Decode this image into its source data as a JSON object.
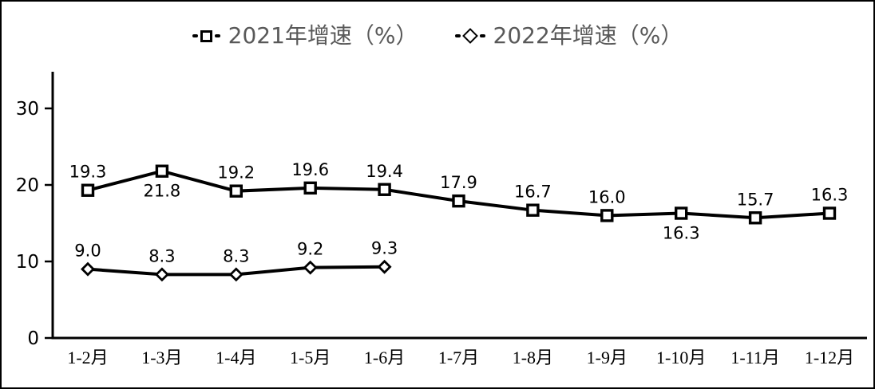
{
  "chart_data": {
    "type": "line",
    "title": "",
    "categories": [
      "1-2月",
      "1-3月",
      "1-4月",
      "1-5月",
      "1-6月",
      "1-7月",
      "1-8月",
      "1-9月",
      "1-10月",
      "1-11月",
      "1-12月"
    ],
    "series": [
      {
        "name": "2021年增速（%）",
        "marker": "square",
        "values": [
          19.3,
          21.8,
          19.2,
          19.6,
          19.4,
          17.9,
          16.7,
          16.0,
          16.3,
          15.7,
          16.3
        ],
        "label_position": [
          "above",
          "below",
          "above",
          "above",
          "above",
          "above",
          "above",
          "above",
          "below",
          "above",
          "above"
        ]
      },
      {
        "name": "2022年增速（%）",
        "marker": "diamond",
        "values": [
          9.0,
          8.3,
          8.3,
          9.2,
          9.3
        ],
        "label_position": [
          "above",
          "above",
          "above",
          "above",
          "above"
        ]
      }
    ],
    "xlabel": "",
    "ylabel": "",
    "yticks": [
      0,
      10,
      20,
      30
    ],
    "ylim": [
      0,
      34.8
    ],
    "grid": false,
    "legend_position": "top-center",
    "colors": {
      "series_line": "#000000",
      "marker_fill": "#ffffff",
      "legend_text": "#595959",
      "axis": "#000000",
      "data_label": "#000000",
      "tick_label": "#000000"
    }
  }
}
